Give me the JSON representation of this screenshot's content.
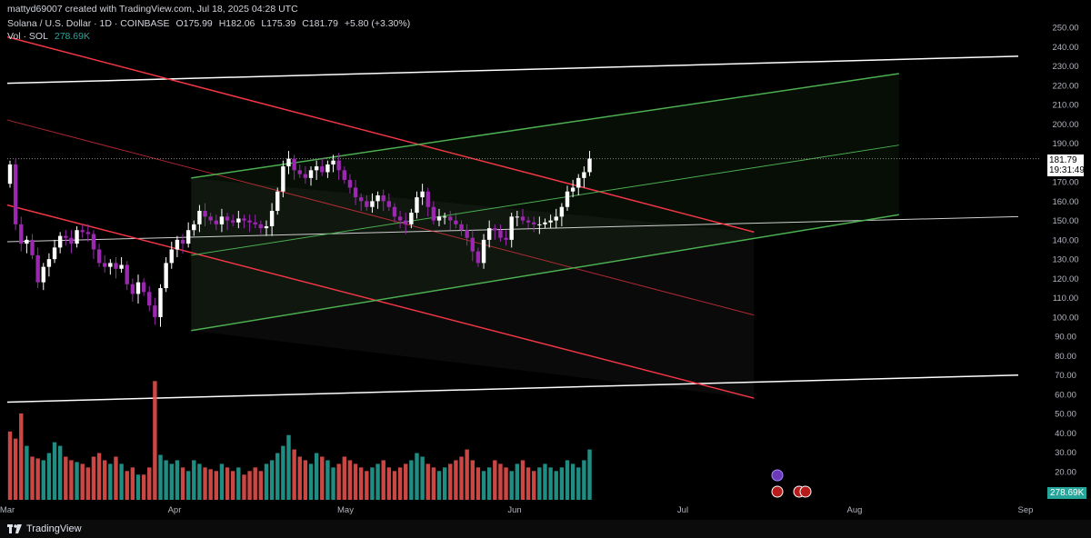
{
  "header": {
    "credit": "mattyd69007 created with TradingView.com, Jul 18, 2025 04:28 UTC",
    "symbol": "Solana / U.S. Dollar · 1D · COINBASE",
    "open": "O175.99",
    "high": "H182.06",
    "low": "L175.39",
    "close": "C181.79",
    "change": "+5.80 (+3.30%)",
    "vol_label": "Vol · SOL",
    "vol_value": "278.69K"
  },
  "price_tag": {
    "price": "181.79",
    "countdown": "19:31:49"
  },
  "vol_tag": "278.69K",
  "brand": "TradingView",
  "colors": {
    "up_candle": "#ffffff",
    "down_candle": "#9c27b0",
    "vol_up": "#26a69a",
    "vol_down": "#ef5350",
    "red_channel": "#f23645",
    "green_channel": "#4caf50",
    "horizontal_lines": "#ffffff"
  },
  "chart_data": {
    "type": "candlestick",
    "y_axis_ticks": [
      "250.00",
      "240.00",
      "230.00",
      "220.00",
      "210.00",
      "200.00",
      "190.00",
      "180.00",
      "170.00",
      "160.00",
      "150.00",
      "140.00",
      "130.00",
      "120.00",
      "110.00",
      "100.00",
      "90.00",
      "80.00",
      "70.00",
      "60.00",
      "50.00",
      "40.00",
      "30.00",
      "20.00"
    ],
    "x_axis_ticks": [
      "Mar",
      "Apr",
      "May",
      "Jun",
      "Jul",
      "Aug",
      "Sep"
    ],
    "ylim": [
      20,
      250
    ],
    "close_series": [
      179,
      148,
      138,
      140,
      132,
      118,
      126,
      130,
      136,
      142,
      141,
      138,
      145,
      144,
      143,
      135,
      128,
      126,
      128,
      125,
      127,
      117,
      112,
      118,
      113,
      106,
      100,
      115,
      128,
      135,
      140,
      138,
      145,
      148,
      155,
      152,
      150,
      148,
      152,
      150,
      149,
      151,
      150,
      149,
      148,
      146,
      147,
      155,
      165,
      178,
      182,
      176,
      174,
      172,
      176,
      178,
      175,
      179,
      181,
      176,
      171,
      167,
      162,
      160,
      157,
      160,
      163,
      160,
      157,
      152,
      150,
      148,
      154,
      162,
      165,
      157,
      150,
      152,
      152,
      150,
      148,
      145,
      141,
      134,
      128,
      140,
      146,
      145,
      141,
      140,
      152,
      152,
      150,
      149,
      148,
      148,
      149,
      150,
      152,
      157,
      165,
      167,
      172,
      175,
      182
    ],
    "volume_series": [
      38,
      34,
      48,
      30,
      24,
      23,
      22,
      26,
      32,
      30,
      24,
      22,
      21,
      20,
      18,
      24,
      26,
      22,
      20,
      24,
      20,
      16,
      18,
      14,
      14,
      18,
      66,
      25,
      22,
      20,
      22,
      18,
      16,
      22,
      20,
      18,
      17,
      16,
      20,
      18,
      16,
      18,
      14,
      16,
      18,
      16,
      20,
      22,
      26,
      30,
      36,
      28,
      24,
      22,
      20,
      26,
      24,
      22,
      18,
      20,
      24,
      22,
      20,
      18,
      16,
      18,
      20,
      22,
      18,
      16,
      18,
      20,
      22,
      26,
      24,
      20,
      18,
      16,
      18,
      20,
      22,
      24,
      28,
      22,
      18,
      16,
      18,
      22,
      20,
      18,
      16,
      20,
      22,
      18,
      16,
      18,
      20,
      18,
      16,
      18,
      22,
      20,
      18,
      22,
      28
    ]
  }
}
